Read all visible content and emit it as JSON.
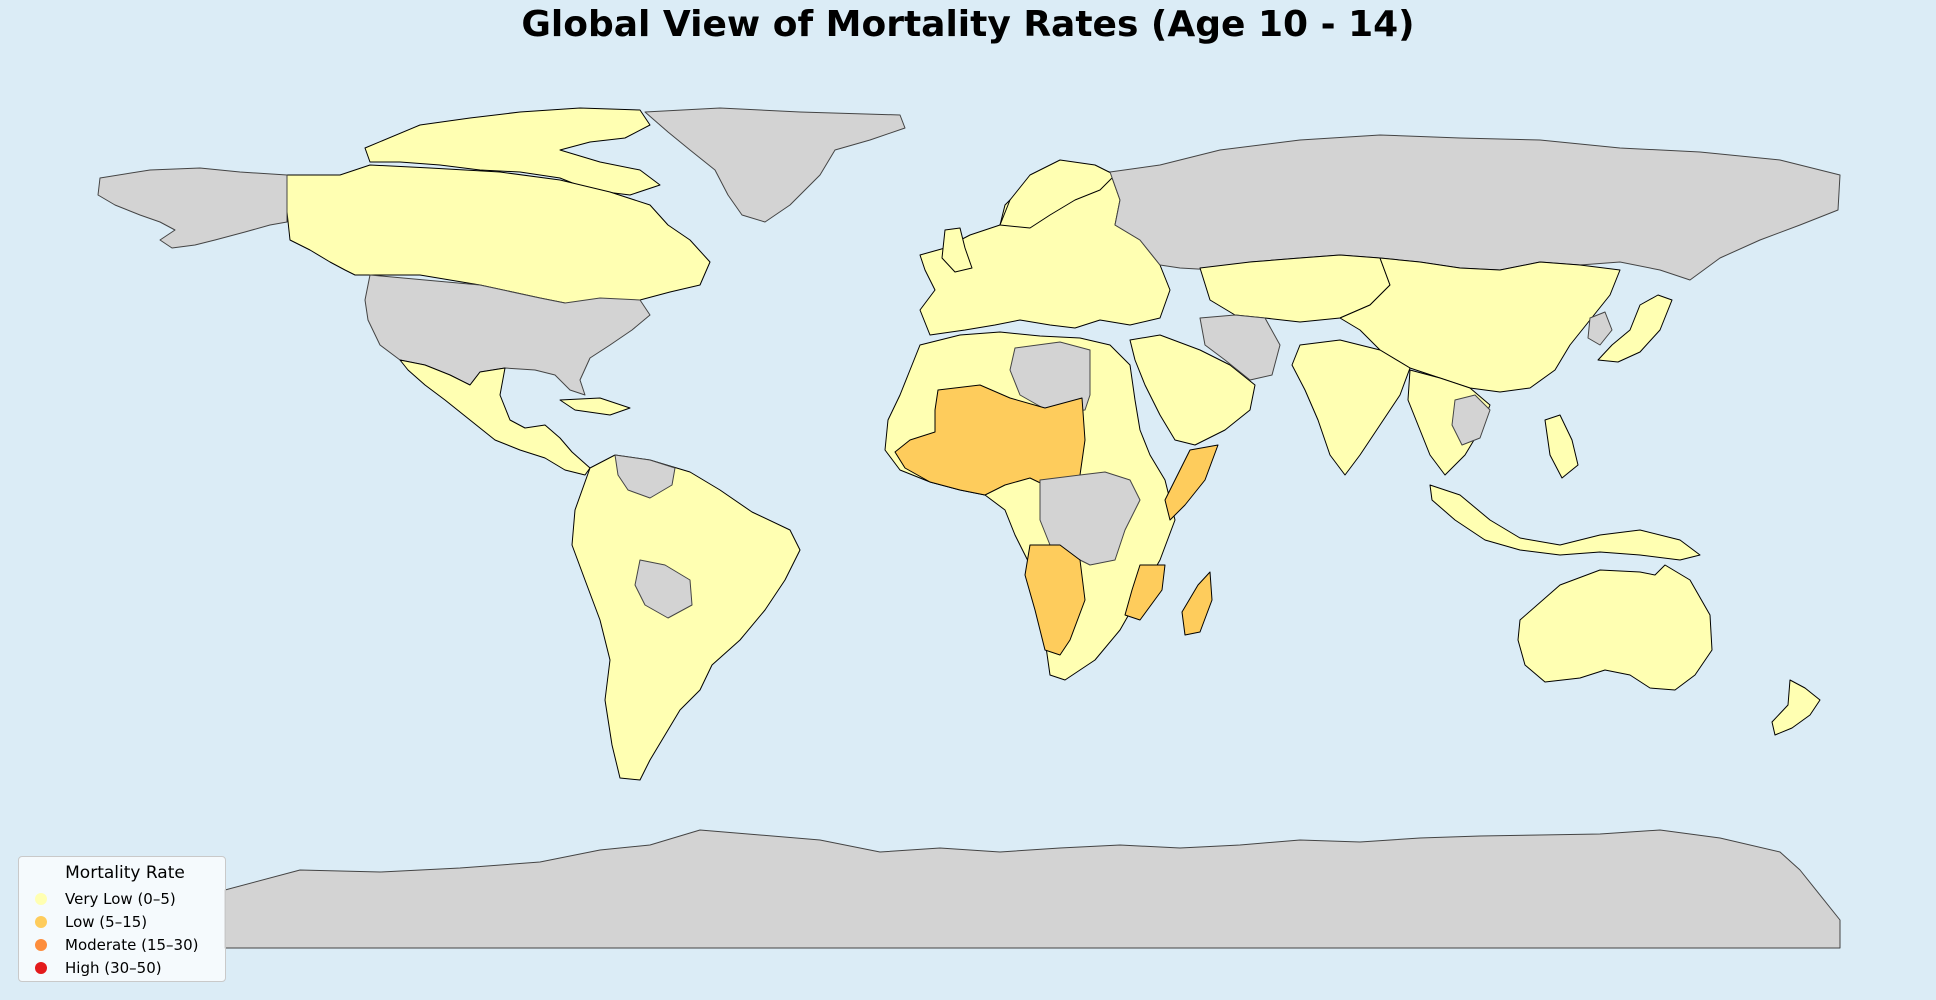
{
  "title": "Global View of Mortality Rates (Age 10 - 14)",
  "map": {
    "projection": "equirectangular",
    "ocean_color": "#dbecf6",
    "no_data_color": "#d3d3d3",
    "border_color": "#000000"
  },
  "legend": {
    "title": "Mortality Rate",
    "placement": "lower-left",
    "items": [
      {
        "label": "Very Low (0–5)",
        "color": "#ffffb2"
      },
      {
        "label": "Low (5–15)",
        "color": "#fecc5c"
      },
      {
        "label": "Moderate (15–30)",
        "color": "#fd8d3c"
      },
      {
        "label": "High (30–50)",
        "color": "#e31a1c"
      }
    ]
  }
}
